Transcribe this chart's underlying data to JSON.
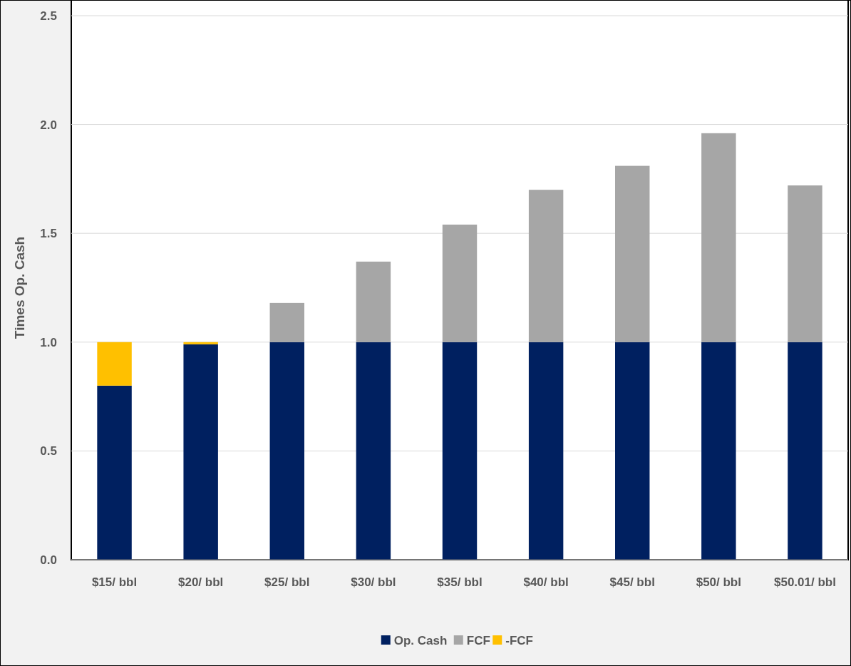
{
  "chart_data": {
    "type": "bar",
    "stacked": true,
    "ylabel": "Times Op. Cash",
    "categories": [
      "$15/ bbl",
      "$20/ bbl",
      "$25/ bbl",
      "$30/ bbl",
      "$35/ bbl",
      "$40/ bbl",
      "$45/ bbl",
      "$50/ bbl",
      "$50.01/ bbl"
    ],
    "series": [
      {
        "name": "Op. Cash",
        "color": "#002060",
        "values": [
          0.8,
          0.99,
          1,
          1,
          1,
          1,
          1,
          1,
          1
        ]
      },
      {
        "name": "FCF",
        "color": "#a6a6a6",
        "values": [
          0,
          0,
          0.18,
          0.37,
          0.54,
          0.7,
          0.81,
          0.96,
          0.72
        ]
      },
      {
        "name": "-FCF",
        "color": "#ffc000",
        "values": [
          0.2,
          0.01,
          0,
          0,
          0,
          0,
          0,
          0,
          0
        ]
      }
    ],
    "ylim": [
      0,
      2.5
    ],
    "yticks": [
      {
        "value": 0,
        "label": "0.0"
      },
      {
        "value": 0.5,
        "label": "0.5"
      },
      {
        "value": 1,
        "label": "1.0"
      },
      {
        "value": 1.5,
        "label": "1.5"
      },
      {
        "value": 2,
        "label": "2.0"
      },
      {
        "value": 2.5,
        "label": "2.5"
      }
    ],
    "grid": "y",
    "legend": "bottom"
  }
}
